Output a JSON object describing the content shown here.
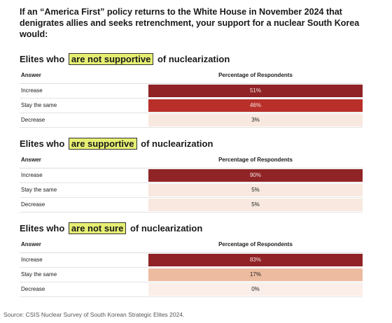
{
  "title": "If an “America First” policy returns to the White House in November 2024 that denigrates allies and seeks retrenchment, your support for a nuclear South Korea would:",
  "column_headers": {
    "answer": "Answer",
    "percentage": "Percentage of Respondents"
  },
  "source": "Source: CSIS Nuclear Survey of South Korean Strategic Elites 2024.",
  "chart_data": [
    {
      "type": "table",
      "title_prefix": "Elites who",
      "title_highlight": "are not supportive",
      "title_suffix": "of nuclearization",
      "categories": [
        "Increase",
        "Stay the same",
        "Decrease"
      ],
      "values": [
        51,
        46,
        3
      ],
      "value_labels": [
        "51%",
        "46%",
        "3%"
      ],
      "colors": [
        "#8f2325",
        "#b9302b",
        "#f8e8df"
      ]
    },
    {
      "type": "table",
      "title_prefix": "Elites who",
      "title_highlight": "are supportive",
      "title_suffix": "of nuclearization",
      "categories": [
        "Increase",
        "Stay the same",
        "Decrease"
      ],
      "values": [
        90,
        5,
        5
      ],
      "value_labels": [
        "90%",
        "5%",
        "5%"
      ],
      "colors": [
        "#8f2325",
        "#f8e8df",
        "#f8e8df"
      ]
    },
    {
      "type": "table",
      "title_prefix": "Elites who",
      "title_highlight": "are not sure",
      "title_suffix": "of nuclearization",
      "categories": [
        "Increase",
        "Stay the same",
        "Decrease"
      ],
      "values": [
        83,
        17,
        0
      ],
      "value_labels": [
        "83%",
        "17%",
        "0%"
      ],
      "colors": [
        "#8f2325",
        "#edbba0",
        "#fbeee8"
      ]
    }
  ]
}
